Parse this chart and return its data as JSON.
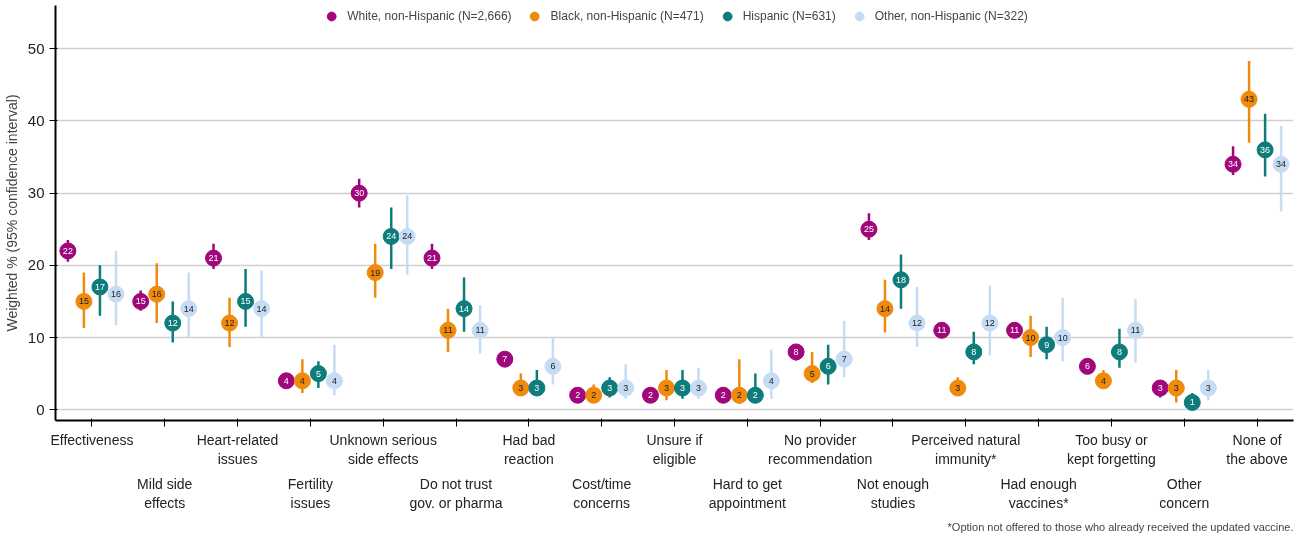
{
  "chart_data": {
    "type": "scatter",
    "categories": [
      "Effectiveness",
      "Mild side\neffects",
      "Heart-related\nissues",
      "Fertility\nissues",
      "Unknown serious\nside effects",
      "Do not trust\ngov. or pharma",
      "Had bad\nreaction",
      "Cost/time\nconcerns",
      "Unsure if\neligible",
      "Hard to get\nappointment",
      "No provider\nrecommendation",
      "Not enough\nstudies",
      "Perceived natural\nimmunity*",
      "Had enough\nvaccines*",
      "Too busy or\nkept forgetting",
      "Other\nconcern",
      "None of\nthe above"
    ],
    "series": [
      {
        "name": "White, non-Hispanic (N=2,666)",
        "color": "#a0077a",
        "values": [
          22,
          15,
          21,
          4,
          30,
          21,
          7,
          2,
          2,
          2,
          8,
          25,
          11,
          11,
          6,
          3,
          34
        ],
        "errors": [
          [
            20.5,
            23.5
          ],
          [
            13.7,
            16.5
          ],
          [
            19.5,
            23
          ],
          [
            3.5,
            5
          ],
          [
            28,
            32
          ],
          [
            19.5,
            23
          ],
          [
            6,
            7.5
          ],
          [
            1.3,
            2.3
          ],
          [
            1.3,
            2.3
          ],
          [
            1.8,
            3
          ],
          [
            6.8,
            8.5
          ],
          [
            23.5,
            27.2
          ],
          [
            10,
            12
          ],
          [
            10,
            11.8
          ],
          [
            5.3,
            7
          ],
          [
            1.7,
            3.6
          ],
          [
            32.5,
            36.5
          ]
        ]
      },
      {
        "name": "Black, non-Hispanic (N=471)",
        "color": "#ef8a0c",
        "values": [
          15,
          16,
          12,
          4,
          19,
          11,
          3,
          2,
          3,
          2,
          5,
          14,
          3,
          10,
          4,
          3,
          43
        ],
        "errors": [
          [
            11.3,
            19
          ],
          [
            12,
            20.3
          ],
          [
            8.7,
            15.5
          ],
          [
            2.3,
            7
          ],
          [
            15.5,
            23
          ],
          [
            8,
            14
          ],
          [
            2.3,
            5
          ],
          [
            1,
            3.5
          ],
          [
            1.3,
            5.5
          ],
          [
            0.8,
            7
          ],
          [
            3.7,
            8
          ],
          [
            10.7,
            18
          ],
          [
            2.3,
            4.5
          ],
          [
            7.3,
            13
          ],
          [
            3,
            5.5
          ],
          [
            1,
            5.5
          ],
          [
            37,
            48.3
          ]
        ]
      },
      {
        "name": "Hispanic (N=631)",
        "color": "#0e7c7b",
        "values": [
          17,
          12,
          15,
          5,
          24,
          14,
          3,
          3,
          3,
          2,
          6,
          18,
          8,
          9,
          8,
          1,
          36
        ],
        "errors": [
          [
            13,
            20
          ],
          [
            9.3,
            15
          ],
          [
            11.5,
            19.5
          ],
          [
            3,
            6.7
          ],
          [
            19.5,
            28
          ],
          [
            10.8,
            18.3
          ],
          [
            2.3,
            5.5
          ],
          [
            1.7,
            4.5
          ],
          [
            1.5,
            5.5
          ],
          [
            1,
            5
          ],
          [
            3.5,
            9
          ],
          [
            14,
            21.5
          ],
          [
            6.3,
            10.8
          ],
          [
            7,
            11.5
          ],
          [
            5.8,
            11.2
          ],
          [
            0,
            2.3
          ],
          [
            32.3,
            41
          ]
        ]
      },
      {
        "name": "Other, non-Hispanic (N=322)",
        "color": "#c6dcf5",
        "values": [
          16,
          14,
          14,
          4,
          24,
          11,
          6,
          3,
          3,
          4,
          7,
          12,
          12,
          10,
          11,
          3,
          34
        ],
        "errors": [
          [
            11.7,
            22
          ],
          [
            10,
            19
          ],
          [
            10,
            19.3
          ],
          [
            2,
            9
          ],
          [
            18.7,
            29.7
          ],
          [
            7.8,
            14.5
          ],
          [
            3.5,
            10
          ],
          [
            1.5,
            6.3
          ],
          [
            1.5,
            5.8
          ],
          [
            1.5,
            8.3
          ],
          [
            4.5,
            12.3
          ],
          [
            8.7,
            17
          ],
          [
            7.5,
            17.2
          ],
          [
            6.7,
            15.5
          ],
          [
            6.5,
            15.3
          ],
          [
            1.3,
            5.5
          ],
          [
            27.5,
            39.3
          ]
        ]
      }
    ],
    "ylabel": "Weighted % (95% confidence interval)",
    "ylim": [
      -1.5,
      56
    ],
    "yticks": [
      0,
      10,
      20,
      30,
      40,
      50
    ],
    "grid": "y",
    "legend": "top",
    "marker": "circle",
    "data_labels": true,
    "annotations": [
      "*Option not offered to those who already received the updated vaccine."
    ]
  }
}
